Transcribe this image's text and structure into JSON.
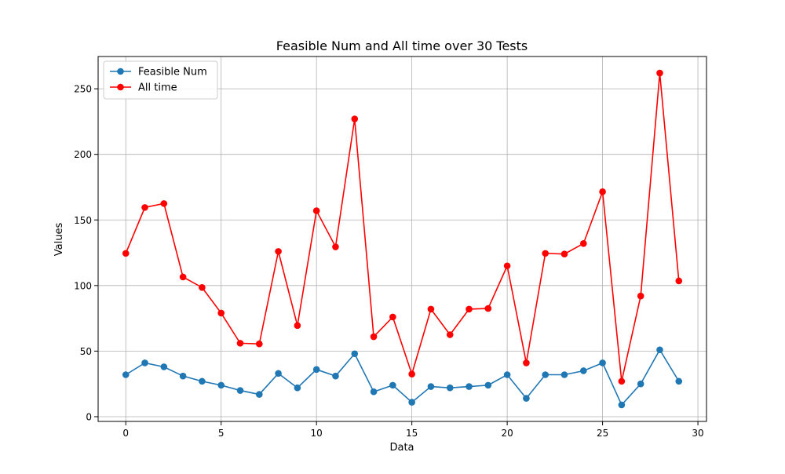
{
  "chart_data": {
    "type": "line",
    "title": "Feasible Num and All time over 30 Tests",
    "xlabel": "Data",
    "ylabel": "Values",
    "xlim": [
      -1.45,
      30.45
    ],
    "ylim": [
      -3.6,
      274.6
    ],
    "x_ticks": [
      0,
      5,
      10,
      15,
      20,
      25,
      30
    ],
    "y_ticks": [
      0,
      50,
      100,
      150,
      200,
      250
    ],
    "grid": true,
    "legend_position": "upper-left",
    "x": [
      0,
      1,
      2,
      3,
      4,
      5,
      6,
      7,
      8,
      9,
      10,
      11,
      12,
      13,
      14,
      15,
      16,
      17,
      18,
      19,
      20,
      21,
      22,
      23,
      24,
      25,
      26,
      27,
      28,
      29
    ],
    "series": [
      {
        "name": "Feasible Num",
        "color": "#1f77b4",
        "marker": "circle",
        "values": [
          32,
          41,
          38,
          31,
          27,
          24,
          20,
          17,
          33,
          22,
          36,
          31,
          48,
          19,
          24,
          11,
          23,
          22,
          23,
          24,
          32,
          14,
          32,
          32,
          35,
          41,
          9,
          25,
          51,
          27
        ]
      },
      {
        "name": "All time",
        "color": "#ff0000",
        "marker": "circle",
        "values": [
          124.5,
          159.5,
          162.5,
          106.5,
          98.5,
          79,
          56,
          55.5,
          126,
          69.5,
          157,
          129.5,
          227,
          61,
          76,
          32.5,
          82,
          62.5,
          82,
          82.5,
          115,
          41,
          124.5,
          124,
          132,
          171.5,
          27,
          92,
          262,
          103.5
        ]
      }
    ]
  }
}
